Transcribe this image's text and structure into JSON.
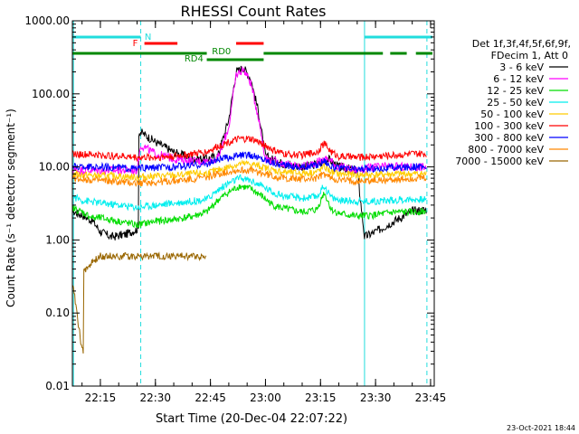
{
  "chart_data": {
    "type": "line",
    "title": "RHESSI Count Rates",
    "xlabel": "Start Time (20-Dec-04 22:07:22)",
    "ylabel": "Count Rate (s⁻¹ detector segment⁻¹)",
    "yscale": "log",
    "ylim": [
      0.01,
      1000
    ],
    "xlim": [
      "22:07:22",
      "23:46:00"
    ],
    "x_ticks": [
      "22:15",
      "22:30",
      "22:45",
      "23:00",
      "23:15",
      "23:30",
      "23:45"
    ],
    "y_ticks": [
      "0.01",
      "0.10",
      "1.00",
      "10.00",
      "100.00",
      "1000.00"
    ],
    "timestamp": "23-Oct-2021 18:44",
    "legend_position": "right",
    "legend_header": [
      "Det 1f,3f,4f,5f,6f,9f,",
      "FDecim 1, Att 0"
    ],
    "colors": {
      "axis": "#000000",
      "N": "#22dddd",
      "F": "#ff0000",
      "RD0": "#008800",
      "RD4": "#008800"
    },
    "vertical_markers": [
      {
        "time": "22:07:40",
        "style": "solid",
        "color": "#22dddd"
      },
      {
        "time": "22:26:00",
        "style": "dashed",
        "color": "#22dddd"
      },
      {
        "time": "23:27:00",
        "style": "solid",
        "color": "#22dddd"
      },
      {
        "time": "23:44:00",
        "style": "dashed",
        "color": "#22dddd"
      }
    ],
    "flags": [
      {
        "label": "N",
        "color": "#22dddd",
        "spans": [
          [
            "22:07:22",
            "22:26:00"
          ],
          [
            "23:27:00",
            "23:45:30"
          ]
        ]
      },
      {
        "label": "F",
        "color": "#ff0000",
        "spans": [
          [
            "22:27:00",
            "22:36:00"
          ],
          [
            "22:52:00",
            "22:59:30"
          ]
        ]
      },
      {
        "label": "RD0",
        "color": "#008800",
        "spans": [
          [
            "22:07:22",
            "22:44:00"
          ],
          [
            "22:59:30",
            "23:32:00"
          ],
          [
            "23:34:00",
            "23:38:30"
          ],
          [
            "23:41:00",
            "23:45:30"
          ]
        ]
      },
      {
        "label": "RD4",
        "color": "#008800",
        "spans": [
          [
            "22:44:00",
            "22:59:30"
          ]
        ]
      }
    ],
    "series": [
      {
        "name": "3 - 6 keV",
        "color": "#000000",
        "points": [
          [
            "22:07",
            "2.5"
          ],
          [
            "22:10",
            "2.2"
          ],
          [
            "22:13",
            "1.8"
          ],
          [
            "22:15",
            "1.3"
          ],
          [
            "22:18",
            "1.1"
          ],
          [
            "22:22",
            "1.2"
          ],
          [
            "22:25",
            "1.4"
          ],
          [
            "22:26",
            "30"
          ],
          [
            "22:30",
            "22"
          ],
          [
            "22:35",
            "16"
          ],
          [
            "22:40",
            "13"
          ],
          [
            "22:44",
            "13"
          ],
          [
            "22:47",
            "14"
          ],
          [
            "22:50",
            "45"
          ],
          [
            "22:52",
            "200"
          ],
          [
            "22:54",
            "230"
          ],
          [
            "22:56",
            "160"
          ],
          [
            "22:58",
            "60"
          ],
          [
            "23:00",
            "14"
          ],
          [
            "23:05",
            "11"
          ],
          [
            "23:10",
            "10"
          ],
          [
            "23:15",
            "11"
          ],
          [
            "23:17",
            "13"
          ],
          [
            "23:20",
            "10"
          ],
          [
            "23:25",
            "9"
          ],
          [
            "23:27",
            "1.1"
          ],
          [
            "23:30",
            "1.3"
          ],
          [
            "23:35",
            "1.8"
          ],
          [
            "23:40",
            "2.5"
          ],
          [
            "23:44",
            "2.6"
          ]
        ]
      },
      {
        "name": "6 - 12 keV",
        "color": "#ff00ff",
        "points": [
          [
            "22:07",
            "9"
          ],
          [
            "22:15",
            "9"
          ],
          [
            "22:20",
            "9"
          ],
          [
            "22:25",
            "9"
          ],
          [
            "22:26",
            "20"
          ],
          [
            "22:30",
            "15"
          ],
          [
            "22:35",
            "13"
          ],
          [
            "22:40",
            "12"
          ],
          [
            "22:44",
            "12"
          ],
          [
            "22:47",
            "13"
          ],
          [
            "22:50",
            "35"
          ],
          [
            "22:52",
            "180"
          ],
          [
            "22:54",
            "220"
          ],
          [
            "22:56",
            "140"
          ],
          [
            "22:58",
            "50"
          ],
          [
            "23:00",
            "13"
          ],
          [
            "23:05",
            "11"
          ],
          [
            "23:10",
            "10"
          ],
          [
            "23:15",
            "12"
          ],
          [
            "23:17",
            "13"
          ],
          [
            "23:20",
            "10"
          ],
          [
            "23:25",
            "9"
          ],
          [
            "23:30",
            "10"
          ],
          [
            "23:35",
            "10"
          ],
          [
            "23:40",
            "10"
          ],
          [
            "23:44",
            "10"
          ]
        ]
      },
      {
        "name": "12 - 25 keV",
        "color": "#00dd00",
        "points": [
          [
            "22:07",
            "2.8"
          ],
          [
            "22:10",
            "2.4"
          ],
          [
            "22:13",
            "2.0"
          ],
          [
            "22:15",
            "2.0"
          ],
          [
            "22:20",
            "1.8"
          ],
          [
            "22:25",
            "1.6"
          ],
          [
            "22:30",
            "1.8"
          ],
          [
            "22:35",
            "1.9"
          ],
          [
            "22:40",
            "2.1"
          ],
          [
            "22:44",
            "2.4"
          ],
          [
            "22:47",
            "3.5"
          ],
          [
            "22:50",
            "4.5"
          ],
          [
            "22:53",
            "5.5"
          ],
          [
            "22:56",
            "5.0"
          ],
          [
            "22:59",
            "4.0"
          ],
          [
            "23:02",
            "3.0"
          ],
          [
            "23:05",
            "2.7"
          ],
          [
            "23:10",
            "2.4"
          ],
          [
            "23:14",
            "2.6"
          ],
          [
            "23:16",
            "4.5"
          ],
          [
            "23:18",
            "2.6"
          ],
          [
            "23:20",
            "2.3"
          ],
          [
            "23:25",
            "2.1"
          ],
          [
            "23:30",
            "2.2"
          ],
          [
            "23:35",
            "2.4"
          ],
          [
            "23:40",
            "2.4"
          ],
          [
            "23:44",
            "2.5"
          ]
        ]
      },
      {
        "name": "25 - 50 keV",
        "color": "#00eeee",
        "points": [
          [
            "22:07",
            "4.0"
          ],
          [
            "22:10",
            "3.5"
          ],
          [
            "22:15",
            "3.2"
          ],
          [
            "22:20",
            "3.0"
          ],
          [
            "22:25",
            "2.8"
          ],
          [
            "22:30",
            "3.0"
          ],
          [
            "22:35",
            "3.2"
          ],
          [
            "22:40",
            "3.4"
          ],
          [
            "22:44",
            "3.6"
          ],
          [
            "22:47",
            "4.8"
          ],
          [
            "22:50",
            "6.0"
          ],
          [
            "22:53",
            "7.0"
          ],
          [
            "22:56",
            "6.5"
          ],
          [
            "22:59",
            "5.5"
          ],
          [
            "23:02",
            "4.5"
          ],
          [
            "23:05",
            "4.0"
          ],
          [
            "23:10",
            "3.7"
          ],
          [
            "23:14",
            "3.9"
          ],
          [
            "23:16",
            "5.5"
          ],
          [
            "23:18",
            "3.8"
          ],
          [
            "23:20",
            "3.5"
          ],
          [
            "23:25",
            "3.4"
          ],
          [
            "23:30",
            "3.4"
          ],
          [
            "23:35",
            "3.5"
          ],
          [
            "23:40",
            "3.6"
          ],
          [
            "23:44",
            "3.6"
          ]
        ]
      },
      {
        "name": "50 - 100 keV",
        "color": "#ffcc00",
        "points": [
          [
            "22:07",
            "8"
          ],
          [
            "22:15",
            "7.5"
          ],
          [
            "22:20",
            "7.5"
          ],
          [
            "22:25",
            "7.2"
          ],
          [
            "22:30",
            "7.5"
          ],
          [
            "22:35",
            "7.6"
          ],
          [
            "22:40",
            "8"
          ],
          [
            "22:44",
            "8.2"
          ],
          [
            "22:47",
            "9"
          ],
          [
            "22:50",
            "10"
          ],
          [
            "22:53",
            "11"
          ],
          [
            "22:56",
            "11"
          ],
          [
            "22:59",
            "10"
          ],
          [
            "23:02",
            "9"
          ],
          [
            "23:05",
            "8.5"
          ],
          [
            "23:10",
            "8.2"
          ],
          [
            "23:14",
            "8.5"
          ],
          [
            "23:16",
            "10"
          ],
          [
            "23:18",
            "8.5"
          ],
          [
            "23:20",
            "8"
          ],
          [
            "23:25",
            "7.8"
          ],
          [
            "23:30",
            "7.8"
          ],
          [
            "23:35",
            "8"
          ],
          [
            "23:40",
            "8"
          ],
          [
            "23:44",
            "8"
          ]
        ]
      },
      {
        "name": "100 - 300 keV",
        "color": "#ff0000",
        "points": [
          [
            "22:07",
            "15"
          ],
          [
            "22:15",
            "14.5"
          ],
          [
            "22:20",
            "14"
          ],
          [
            "22:25",
            "13.5"
          ],
          [
            "22:30",
            "13.5"
          ],
          [
            "22:35",
            "14"
          ],
          [
            "22:40",
            "15"
          ],
          [
            "22:44",
            "16"
          ],
          [
            "22:47",
            "19"
          ],
          [
            "22:50",
            "22"
          ],
          [
            "22:53",
            "24"
          ],
          [
            "22:56",
            "24"
          ],
          [
            "22:59",
            "21"
          ],
          [
            "23:02",
            "17"
          ],
          [
            "23:05",
            "15"
          ],
          [
            "23:10",
            "14.5"
          ],
          [
            "23:14",
            "16"
          ],
          [
            "23:16",
            "21"
          ],
          [
            "23:18",
            "16"
          ],
          [
            "23:20",
            "14"
          ],
          [
            "23:25",
            "13.5"
          ],
          [
            "23:30",
            "14"
          ],
          [
            "23:35",
            "14.5"
          ],
          [
            "23:40",
            "15"
          ],
          [
            "23:44",
            "15"
          ]
        ]
      },
      {
        "name": "300 - 800 keV",
        "color": "#0000ff",
        "points": [
          [
            "22:07",
            "10"
          ],
          [
            "22:15",
            "10"
          ],
          [
            "22:20",
            "9.8"
          ],
          [
            "22:25",
            "9.5"
          ],
          [
            "22:30",
            "9.8"
          ],
          [
            "22:35",
            "10"
          ],
          [
            "22:40",
            "10.5"
          ],
          [
            "22:44",
            "11"
          ],
          [
            "22:47",
            "12.5"
          ],
          [
            "22:50",
            "13.5"
          ],
          [
            "22:53",
            "14.5"
          ],
          [
            "22:56",
            "14.5"
          ],
          [
            "22:59",
            "13"
          ],
          [
            "23:02",
            "11.5"
          ],
          [
            "23:05",
            "10.5"
          ],
          [
            "23:10",
            "10"
          ],
          [
            "23:14",
            "10.5"
          ],
          [
            "23:16",
            "12.5"
          ],
          [
            "23:18",
            "10"
          ],
          [
            "23:20",
            "9.5"
          ],
          [
            "23:25",
            "9.3"
          ],
          [
            "23:30",
            "9.5"
          ],
          [
            "23:35",
            "9.8"
          ],
          [
            "23:40",
            "10"
          ],
          [
            "23:44",
            "10"
          ]
        ]
      },
      {
        "name": "800 - 7000 keV",
        "color": "#ff8800",
        "points": [
          [
            "22:07",
            "7"
          ],
          [
            "22:15",
            "6.5"
          ],
          [
            "22:20",
            "6.2"
          ],
          [
            "22:25",
            "6"
          ],
          [
            "22:30",
            "6.2"
          ],
          [
            "22:35",
            "6.4"
          ],
          [
            "22:40",
            "6.8"
          ],
          [
            "22:44",
            "7.2"
          ],
          [
            "22:47",
            "8"
          ],
          [
            "22:50",
            "8.6"
          ],
          [
            "22:53",
            "9"
          ],
          [
            "22:56",
            "9"
          ],
          [
            "22:59",
            "8.2"
          ],
          [
            "23:02",
            "7.5"
          ],
          [
            "23:05",
            "7"
          ],
          [
            "23:10",
            "6.8"
          ],
          [
            "23:14",
            "7"
          ],
          [
            "23:16",
            "8"
          ],
          [
            "23:18",
            "7"
          ],
          [
            "23:20",
            "6.6"
          ],
          [
            "23:25",
            "6.4"
          ],
          [
            "23:30",
            "6.5"
          ],
          [
            "23:35",
            "6.7"
          ],
          [
            "23:40",
            "6.9"
          ],
          [
            "23:44",
            "7"
          ]
        ]
      },
      {
        "name": "7000 - 15000 keV",
        "color": "#996600",
        "points": [
          [
            "22:07",
            "0.4"
          ],
          [
            "22:10",
            "0.03"
          ],
          [
            "22:11",
            "0.4"
          ],
          [
            "22:13",
            "0.5"
          ],
          [
            "22:15",
            "0.6"
          ],
          [
            "22:20",
            "0.6"
          ],
          [
            "22:25",
            "0.6"
          ],
          [
            "22:30",
            "0.6"
          ],
          [
            "22:35",
            "0.6"
          ],
          [
            "22:40",
            "0.6"
          ],
          [
            "22:44",
            "0.6"
          ]
        ]
      }
    ]
  }
}
